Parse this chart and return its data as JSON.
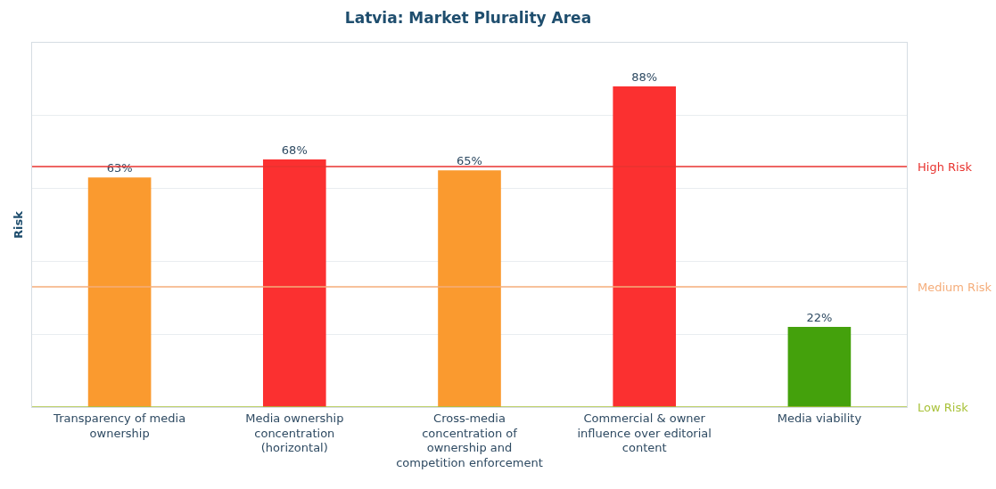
{
  "chart_data": {
    "type": "bar",
    "title": "Latvia: Market Plurality Area",
    "ylabel": "Risk",
    "categories": [
      "Transparency of media ownership",
      "Media ownership concentration (horizontal)",
      "Cross-media concentration of ownership and competition enforcement",
      "Commercial & owner influence over editorial content",
      "Media viability"
    ],
    "values": [
      63,
      68,
      65,
      88,
      22
    ],
    "colors": [
      "#fa9a2f",
      "#fb3030",
      "#fa9a2f",
      "#fb3030",
      "#44a10c"
    ],
    "value_labels": [
      "63%",
      "68%",
      "65%",
      "88%",
      "22%"
    ],
    "ylim": [
      0,
      100
    ],
    "yticks": [
      {
        "value": 0,
        "label": null
      },
      {
        "value": 20,
        "label": null
      },
      {
        "value": 40,
        "label": null
      },
      {
        "value": 60,
        "label": null
      },
      {
        "value": 80,
        "label": null
      },
      {
        "value": 100,
        "label": null
      }
    ],
    "grid": "y",
    "legend": false,
    "ref_lines": [
      {
        "axis": "y",
        "value": 66,
        "label": "High Risk",
        "color": "#e8332f"
      },
      {
        "axis": "y",
        "value": 33,
        "label": "Medium Risk",
        "color": "#f5ad7a"
      },
      {
        "axis": "y",
        "value": 0,
        "label": "Low Risk",
        "color": "#a9c23a"
      }
    ]
  }
}
